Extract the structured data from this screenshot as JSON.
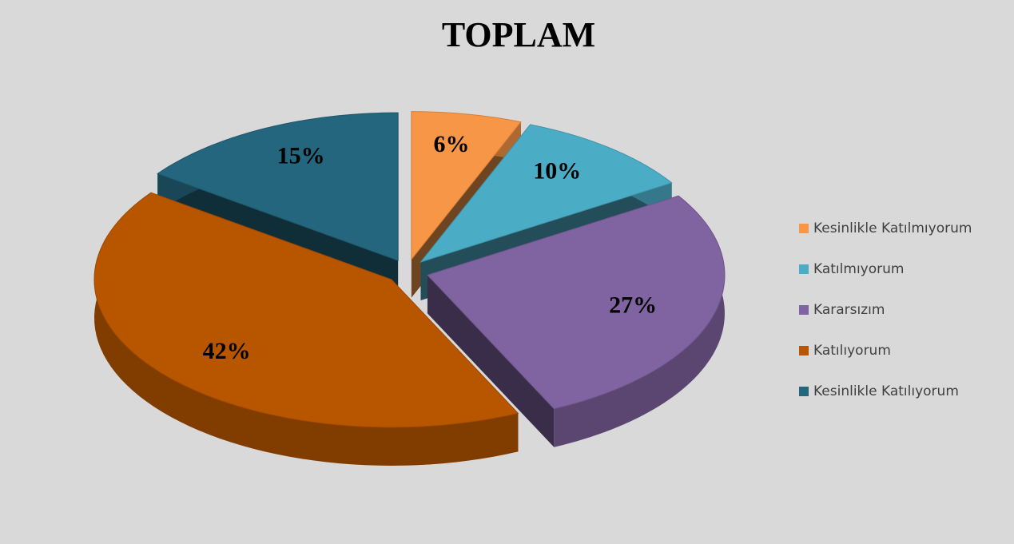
{
  "chart_data": {
    "type": "pie",
    "title": "TOPLAM",
    "categories": [
      "Kesinlikle Katılmıyorum",
      "Katılmıyorum",
      "Kararsızım",
      "Katılıyorum",
      "Kesinlikle Katılıyorum"
    ],
    "values": [
      6,
      10,
      27,
      42,
      15
    ],
    "value_labels": [
      "6%",
      "10%",
      "27%",
      "42%",
      "15%"
    ],
    "colors": [
      "#f79646",
      "#4bacc6",
      "#8064a2",
      "#b85600",
      "#23667d"
    ],
    "legend": "right"
  }
}
